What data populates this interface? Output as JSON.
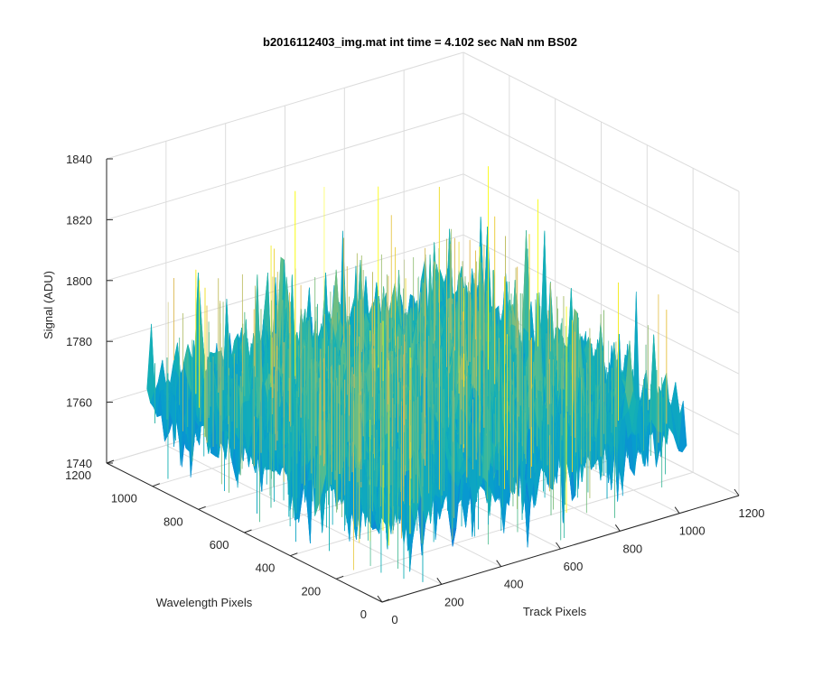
{
  "chart_data": {
    "type": "surface",
    "title": "b2016112403_img.mat int time = 4.102 sec  NaN nm BS02",
    "xlabel": "Track Pixels",
    "ylabel": "Wavelength Pixels",
    "zlabel": "Signal (ADU)",
    "xlim": [
      0,
      1200
    ],
    "ylim": [
      0,
      1200
    ],
    "zlim": [
      1740,
      1840
    ],
    "xticks": [
      "0",
      "200",
      "400",
      "600",
      "800",
      "1000",
      "1200"
    ],
    "yticks": [
      "0",
      "200",
      "400",
      "600",
      "800",
      "1000",
      "1200"
    ],
    "zticks": [
      "1740",
      "1760",
      "1780",
      "1800",
      "1820",
      "1840"
    ],
    "grid": true,
    "colormap": "parula",
    "surface": {
      "x_extent": [
        0,
        1024
      ],
      "y_extent": [
        0,
        1024
      ],
      "mean_level": 1773,
      "min_approx": 1742,
      "max_approx": 1832,
      "noise_amplitude": 22
    }
  }
}
